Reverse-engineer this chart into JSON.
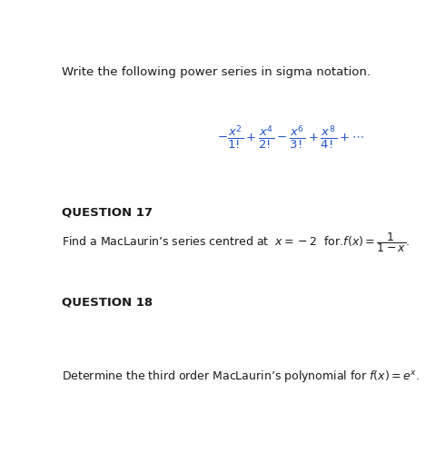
{
  "bg_color": "#ffffff",
  "text_color": "#1a1a1a",
  "formula_color": "#2255cc",
  "intro_text": "Write the following power series in sigma notation.",
  "formula": "$-\\dfrac{x^2}{1!}+\\dfrac{x^4}{2!}-\\dfrac{x^6}{3!}+\\dfrac{x^8}{4!}+\\cdots$",
  "q17_label": "QUESTION 17",
  "q17_text": "Find a MacLaurin’s series centred at  $x = -2$  for.$f(x) = \\dfrac{1}{1-x}$.",
  "q18_label": "QUESTION 18",
  "q18_text": "Determine the third order MacLaurin’s polynomial for $f(x) = e^x$.",
  "figwidth": 4.69,
  "figheight": 4.99,
  "dpi": 100,
  "intro_fontsize": 9.5,
  "formula_fontsize": 9.5,
  "label_fontsize": 9.5,
  "body_fontsize": 9.0
}
